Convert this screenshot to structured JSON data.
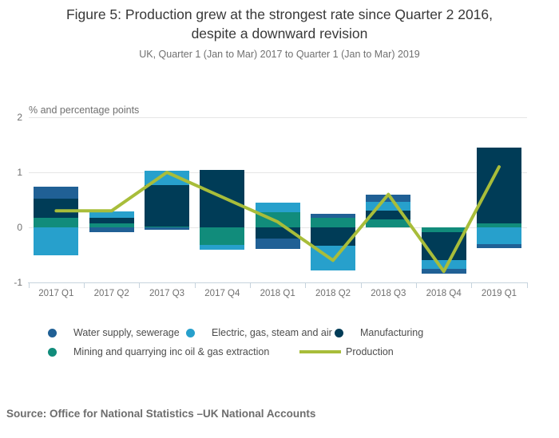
{
  "header": {
    "title_line1": "Figure 5: Production grew at the strongest rate since Quarter 2 2016,",
    "title_line2": "despite a downward revision",
    "subtitle": "UK, Quarter 1 (Jan to Mar) 2017 to Quarter 1 (Jan to Mar) 2019"
  },
  "chart_data": {
    "type": "bar",
    "subtype": "stacked-column-with-line",
    "unit_label": "% and percentage points",
    "categories": [
      "2017 Q1",
      "2017 Q2",
      "2017 Q3",
      "2017 Q4",
      "2018 Q1",
      "2018 Q2",
      "2018 Q3",
      "2018 Q4",
      "2019 Q1"
    ],
    "series": [
      {
        "name": "Water supply, sewerage",
        "color": "#206095",
        "values": [
          0.22,
          -0.08,
          -0.04,
          0.0,
          -0.19,
          0.07,
          0.13,
          -0.08,
          -0.07
        ]
      },
      {
        "name": "Electric, gas, steam and air",
        "color": "#27a0cc",
        "values": [
          -0.5,
          0.11,
          0.26,
          -0.09,
          0.17,
          -0.44,
          0.16,
          -0.16,
          -0.31
        ]
      },
      {
        "name": "Manufacturing",
        "color": "#003c57",
        "values": [
          0.35,
          0.11,
          0.76,
          1.05,
          -0.2,
          -0.34,
          0.17,
          -0.52,
          1.38
        ]
      },
      {
        "name": "Mining and quarrying inc oil & gas extraction",
        "color": "#118c7b",
        "values": [
          0.17,
          0.07,
          0.01,
          -0.32,
          0.28,
          0.17,
          0.14,
          -0.08,
          0.07
        ]
      }
    ],
    "line_series": {
      "name": "Production",
      "color": "#a8bd3a",
      "values": [
        0.3,
        0.3,
        1.0,
        0.55,
        0.1,
        -0.6,
        0.6,
        -0.8,
        1.1
      ]
    },
    "stack_order_from_zero": [
      "Mining and quarrying inc oil & gas extraction",
      "Manufacturing",
      "Electric, gas, steam and air",
      "Water supply, sewerage"
    ],
    "yticks": [
      2,
      1,
      0,
      -1
    ],
    "ylim": [
      -1,
      2
    ],
    "grid": true,
    "legend_position": "bottom",
    "colors": {
      "gridline": "#e6e6e6",
      "axis": "#c6d3dd",
      "axis_text": "#707070",
      "title_text": "#383838",
      "legend_text": "#4c4c4c"
    }
  },
  "source": "Source: Office for National Statistics –UK National Accounts"
}
